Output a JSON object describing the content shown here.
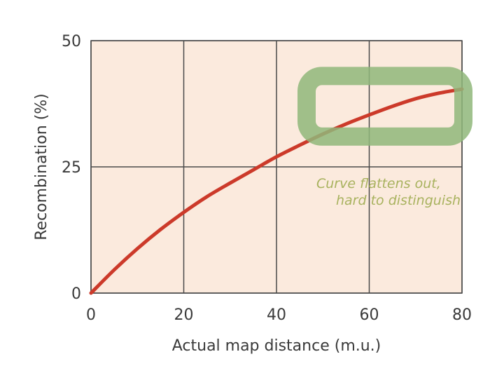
{
  "chart_data": {
    "type": "line",
    "title": "",
    "xlabel": "Actual map distance (m.u.)",
    "ylabel": "Recombination (%)",
    "xlim": [
      0,
      80
    ],
    "ylim": [
      0,
      50
    ],
    "x_ticks": [
      "0",
      "20",
      "40",
      "60",
      "80"
    ],
    "y_ticks": [
      "0",
      "25",
      "50"
    ],
    "grid": true,
    "series": [
      {
        "x": [
          0,
          5,
          10,
          15,
          20,
          25,
          30,
          35,
          40,
          45,
          50,
          55,
          60,
          65,
          70,
          75,
          80
        ],
        "values": [
          0,
          4.6,
          8.8,
          12.6,
          16.0,
          19.1,
          21.8,
          24.4,
          27.0,
          29.3,
          31.5,
          33.5,
          35.3,
          37.0,
          38.5,
          39.6,
          40.4
        ]
      }
    ],
    "annotations": [
      {
        "type": "handwritten-note",
        "lines": [
          "Curve flattens out,",
          "hard to distinguish"
        ]
      },
      {
        "type": "highlight",
        "shape": "rounded-rectangle",
        "x_range": [
          48,
          80
        ],
        "y_range": [
          31,
          43
        ]
      }
    ]
  },
  "colors": {
    "plot_bg": "#fbeadd",
    "grid": "#4a4a4a",
    "line": "#cc3a2a",
    "highlight": "#8fb77a",
    "note_text": "#a8b25e"
  }
}
